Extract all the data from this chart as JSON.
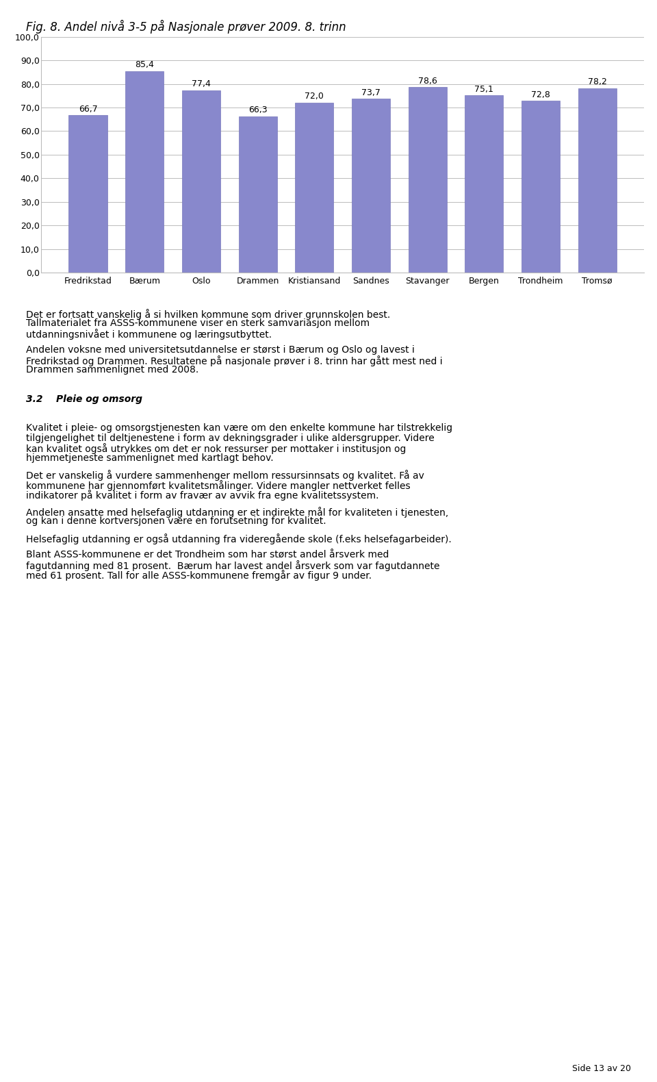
{
  "title": "Fig. 8. Andel nivå 3-5 på Nasjonale prøver 2009. 8. trinn",
  "categories": [
    "Fredrikstad",
    "Bærum",
    "Oslo",
    "Drammen",
    "Kristiansand",
    "Sandnes",
    "Stavanger",
    "Bergen",
    "Trondheim",
    "Tromsø"
  ],
  "values": [
    66.7,
    85.4,
    77.4,
    66.3,
    72.0,
    73.7,
    78.6,
    75.1,
    72.8,
    78.2
  ],
  "bar_color": "#8888cc",
  "bar_edge_color": "#7777bb",
  "ylim": [
    0,
    100
  ],
  "yticks": [
    0.0,
    10.0,
    20.0,
    30.0,
    40.0,
    50.0,
    60.0,
    70.0,
    80.0,
    90.0,
    100.0
  ],
  "grid_color": "#bbbbbb",
  "background_color": "#ffffff",
  "plot_bg_color": "#ffffff",
  "title_fontsize": 12,
  "tick_fontsize": 9,
  "value_fontsize": 9,
  "body_paragraphs": [
    {
      "text": "Det er fortsatt vanskelig å si hvilken kommune som driver grunnskolen best.\nTallmaterialet fra ASSS-kommunene viser en sterk samvariasjon mellom\nutdanningsnivået i kommunene og læringsutbyttet.",
      "bold_words": [],
      "italic": false,
      "bold": false,
      "color": "#000000",
      "is_heading": false
    },
    {
      "text": "Andelen voksne med universitetsutdannelse er størst i Bærum og Oslo og lavest i\nFredrikstad og Drammen. Resultatene på nasjonale prøver i 8. trinn har gått mest ned i\nDrammen sammenlignet med 2008.",
      "bold_words": [],
      "italic": false,
      "bold": false,
      "color": "#000000",
      "is_heading": false
    },
    {
      "text": "3.2\tPleie og omsorg",
      "italic": true,
      "bold": true,
      "color": "#000000",
      "is_heading": true
    },
    {
      "text": "Kvalitet i pleie- og omsorgstjenesten kan være om den enkelte kommune har tilstrekkelig\ntilgjengelighet til deltjenestene i form av dekningsgrader i ulike aldersgrupper. Videre\nkan kvalitet også utrykkes om det er nok ressurser per mottaker i institusjon og\nhjemmetjeneste sammenlignet med kartlagt behov.",
      "italic": false,
      "bold": false,
      "color": "#000000",
      "is_heading": false
    },
    {
      "text": "Det er vanskelig å vurdere sammenhenger mellom ressursinnsats og kvalitet. Få av\nkommunene har gjennomført kvalitetsmålinger. Videre mangler nettverket felles\nindikatorer på kvalitet i form av fravær av avvik fra egne kvalitetssystem.",
      "italic": false,
      "bold": false,
      "color": "#000000",
      "is_heading": false
    },
    {
      "text": "Andelen ansatte med helsefaglig utdanning er et indirekte mål for kvaliteten i tjenesten,\nog kan i denne kortversjonen være en forutsetning for kvalitet.",
      "italic": false,
      "bold": false,
      "color": "#000000",
      "is_heading": false
    },
    {
      "text": "Helsefaglig utdanning er også utdanning fra videregående skole (f.eks helsefagarbeider).",
      "italic": false,
      "bold": false,
      "color": "#000000",
      "is_heading": false
    },
    {
      "text": "Blant ASSS-kommunene er det Trondheim som har størst andel årsverk med\nfagutdanning med 81 prosent.  Bærum har lavest andel årsverk som var fagutdannete\nmed 61 prosent. Tall for alle ASSS-kommunene fremgår av figur 9 under.",
      "italic": false,
      "bold": false,
      "color": "#000000",
      "is_heading": false
    }
  ],
  "footer_text": "Side 13 av 20"
}
